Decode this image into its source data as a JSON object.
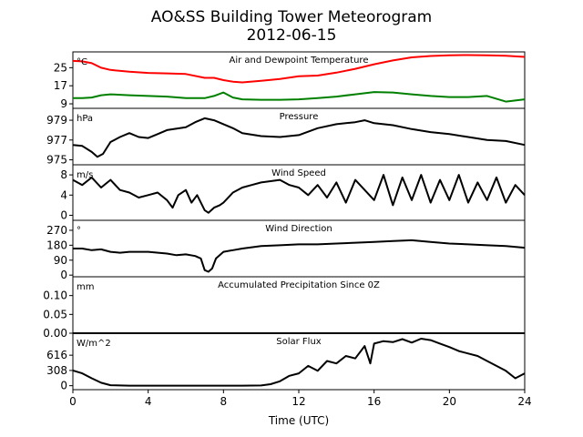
{
  "chart_data": {
    "type": "line",
    "title": "AO&SS Building Tower Meteorogram",
    "subtitle": "2012-06-15",
    "xlabel": "Time (UTC)",
    "xlim": [
      0,
      24
    ],
    "xticks": [
      0,
      4,
      8,
      12,
      16,
      20,
      24
    ],
    "panels": [
      {
        "title": "Air and Dewpoint Temperature",
        "unit": "°C",
        "ylim": [
          7,
          32
        ],
        "yticks": [
          9,
          17,
          25
        ],
        "series": [
          {
            "color": "#ff0000",
            "x": [
              0,
              0.5,
              1,
              1.5,
              2,
              3,
              4,
              5,
              6,
              7,
              7.5,
              8,
              8.5,
              9,
              10,
              11,
              12,
              13,
              14,
              15,
              16,
              17,
              18,
              19,
              20,
              21,
              22,
              23,
              24
            ],
            "y": [
              28,
              27.8,
              27,
              25,
              24,
              23.2,
              22.7,
              22.5,
              22.2,
              20.5,
              20.5,
              19.5,
              18.8,
              18.5,
              19.2,
              20,
              21.2,
              21.5,
              22.8,
              24.5,
              26.5,
              28.2,
              29.6,
              30.2,
              30.5,
              30.6,
              30.5,
              30.3,
              29.8
            ]
          },
          {
            "color": "#008000",
            "x": [
              0,
              0.5,
              1,
              1.5,
              2,
              3,
              4,
              5,
              6,
              7,
              7.5,
              8,
              8.5,
              9,
              10,
              11,
              12,
              13,
              14,
              15,
              16,
              17,
              18,
              19,
              20,
              21,
              22,
              23,
              24
            ],
            "y": [
              11.5,
              11.5,
              11.8,
              12.8,
              13.2,
              12.8,
              12.5,
              12.2,
              11.5,
              11.5,
              12.5,
              14,
              11.8,
              11,
              10.8,
              10.8,
              11,
              11.5,
              12.2,
              13.2,
              14.2,
              14,
              13.2,
              12.5,
              12,
              12,
              12.5,
              10,
              11
            ]
          }
        ]
      },
      {
        "title": "Pressure",
        "unit": "hPa",
        "ylim": [
          974.5,
          980.2
        ],
        "yticks": [
          975,
          977,
          979
        ],
        "series": [
          {
            "color": "#000000",
            "x": [
              0,
              0.5,
              1,
              1.3,
              1.6,
              2,
              2.5,
              3,
              3.5,
              4,
              4.5,
              5,
              6,
              6.5,
              7,
              7.5,
              8,
              8.5,
              9,
              10,
              11,
              12,
              13,
              14,
              15,
              15.5,
              16,
              17,
              18,
              19,
              20,
              21,
              22,
              23,
              24
            ],
            "y": [
              976.5,
              976.4,
              975.8,
              975.3,
              975.6,
              976.8,
              977.3,
              977.7,
              977.3,
              977.2,
              977.6,
              978,
              978.3,
              978.8,
              979.2,
              979,
              978.6,
              978.2,
              977.7,
              977.4,
              977.3,
              977.5,
              978.2,
              978.6,
              978.8,
              979,
              978.7,
              978.5,
              978.1,
              977.8,
              977.6,
              977.3,
              977,
              976.9,
              976.5
            ]
          }
        ]
      },
      {
        "title": "Wind Speed",
        "unit": "m/s",
        "ylim": [
          -1,
          10
        ],
        "yticks": [
          0,
          4,
          8
        ],
        "series": [
          {
            "color": "#000000",
            "x": [
              0,
              0.5,
              1,
              1.5,
              2,
              2.5,
              3,
              3.5,
              4,
              4.5,
              5,
              5.3,
              5.6,
              6,
              6.3,
              6.6,
              7,
              7.2,
              7.5,
              7.8,
              8,
              8.5,
              9,
              9.5,
              10,
              11,
              11.5,
              12,
              12.5,
              13,
              13.5,
              14,
              14.5,
              15,
              16,
              16.5,
              17,
              17.5,
              18,
              18.5,
              19,
              19.5,
              20,
              20.5,
              21,
              21.5,
              22,
              22.5,
              23,
              23.5,
              24
            ],
            "y": [
              7,
              6,
              7.5,
              5.5,
              7,
              5,
              4.5,
              3.5,
              4,
              4.5,
              3,
              1.5,
              4,
              5,
              2.5,
              4,
              1,
              0.5,
              1.5,
              2,
              2.5,
              4.5,
              5.5,
              6,
              6.5,
              7,
              6,
              5.5,
              4,
              6,
              3.5,
              6.5,
              2.5,
              7,
              3,
              8,
              2,
              7.5,
              3,
              8,
              2.5,
              7,
              3,
              8,
              2.5,
              6.5,
              3,
              7.5,
              2.5,
              6,
              4
            ]
          }
        ]
      },
      {
        "title": "Wind Direction",
        "unit": "°",
        "ylim": [
          -10,
          330
        ],
        "yticks": [
          0,
          90,
          180,
          270
        ],
        "series": [
          {
            "color": "#000000",
            "x": [
              0,
              0.5,
              1,
              1.5,
              2,
              2.5,
              3,
              4,
              5,
              5.5,
              6,
              6.5,
              6.8,
              7,
              7.2,
              7.4,
              7.6,
              8,
              8.5,
              9,
              10,
              11,
              12,
              13,
              14,
              15,
              16,
              17,
              18,
              19,
              20,
              21,
              22,
              23,
              24
            ],
            "y": [
              160,
              160,
              150,
              155,
              140,
              135,
              140,
              140,
              130,
              120,
              125,
              115,
              100,
              30,
              20,
              40,
              100,
              140,
              150,
              160,
              175,
              180,
              185,
              185,
              190,
              195,
              200,
              205,
              210,
              200,
              190,
              185,
              180,
              175,
              165
            ]
          }
        ]
      },
      {
        "title": "Accumulated Precipitation Since 0Z",
        "unit": "mm",
        "ylim": [
          0,
          0.15
        ],
        "yticks": [
          0.0,
          0.05,
          0.1
        ],
        "ytick_labels": [
          "0.00",
          "0.05",
          "0.10"
        ],
        "series": [
          {
            "color": "#000000",
            "x": [
              0,
              24
            ],
            "y": [
              0,
              0
            ]
          }
        ]
      },
      {
        "title": "Solar Flux",
        "unit": "W/m^2",
        "ylim": [
          -80,
          1060
        ],
        "yticks": [
          0,
          308,
          616
        ],
        "series": [
          {
            "color": "#000000",
            "x": [
              0,
              0.5,
              1,
              1.5,
              2,
              3,
              4,
              5,
              6,
              7,
              8,
              9,
              10,
              10.5,
              11,
              11.5,
              12,
              12.5,
              13,
              13.5,
              14,
              14.5,
              15,
              15.5,
              15.8,
              16,
              16.5,
              17,
              17.5,
              18,
              18.5,
              19,
              19.5,
              20,
              20.5,
              21,
              21.5,
              22,
              22.5,
              23,
              23.5,
              24
            ],
            "y": [
              308,
              250,
              150,
              60,
              10,
              0,
              0,
              0,
              0,
              0,
              0,
              0,
              5,
              30,
              90,
              200,
              250,
              400,
              300,
              500,
              450,
              600,
              550,
              800,
              450,
              850,
              900,
              880,
              940,
              870,
              950,
              920,
              850,
              780,
              700,
              650,
              600,
              500,
              400,
              300,
              150,
              250
            ]
          }
        ]
      }
    ]
  }
}
